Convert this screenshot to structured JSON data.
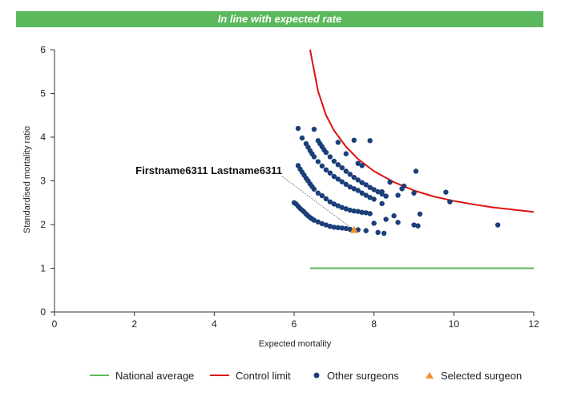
{
  "banner": {
    "text": "In line with expected rate"
  },
  "chart_data": {
    "type": "scatter",
    "xlabel": "Expected mortality",
    "ylabel": "Standardised mortality ratio",
    "xlim": [
      0,
      12
    ],
    "ylim": [
      0,
      6
    ],
    "xticks": [
      "0",
      "2",
      "4",
      "6",
      "8",
      "10",
      "12"
    ],
    "yticks": [
      "0",
      "1",
      "2",
      "3",
      "4",
      "5",
      "6"
    ],
    "grid": false,
    "legend_position": "bottom",
    "colors": {
      "national_average": "#5cb85c",
      "control_limit": "#dd1111",
      "other_surgeons": "#1b3f78",
      "selected_surgeon": "#f0922b"
    },
    "series": [
      {
        "name": "National average",
        "kind": "line",
        "x": [
          6.4,
          12
        ],
        "y": [
          1,
          1
        ]
      },
      {
        "name": "Control limit",
        "kind": "line",
        "x": [
          6.4,
          6.6,
          6.8,
          7.0,
          7.3,
          7.6,
          8.0,
          8.5,
          9.0,
          9.5,
          10.0,
          10.5,
          11.0,
          11.5,
          12.0
        ],
        "y": [
          6.0,
          5.05,
          4.5,
          4.15,
          3.78,
          3.5,
          3.22,
          2.97,
          2.78,
          2.64,
          2.54,
          2.46,
          2.39,
          2.34,
          2.29
        ]
      },
      {
        "name": "Other surgeons",
        "kind": "scatter",
        "x": [
          6.0,
          6.05,
          6.1,
          6.15,
          6.2,
          6.25,
          6.3,
          6.35,
          6.4,
          6.45,
          6.5,
          6.6,
          6.7,
          6.8,
          6.9,
          7.0,
          7.1,
          7.2,
          7.3,
          7.4,
          7.6,
          7.8,
          8.1,
          8.25,
          6.1,
          6.15,
          6.2,
          6.25,
          6.3,
          6.35,
          6.4,
          6.45,
          6.5,
          6.6,
          6.7,
          6.8,
          6.9,
          7.0,
          7.1,
          7.2,
          7.3,
          7.4,
          7.5,
          7.6,
          7.7,
          7.8,
          7.9,
          6.3,
          6.35,
          6.4,
          6.45,
          6.5,
          6.6,
          6.7,
          6.8,
          6.9,
          7.0,
          7.1,
          7.2,
          7.3,
          7.4,
          7.5,
          7.6,
          7.7,
          7.8,
          7.9,
          8.0,
          8.2,
          6.6,
          6.65,
          6.7,
          6.75,
          6.8,
          6.9,
          7.0,
          7.1,
          7.2,
          7.3,
          7.4,
          7.5,
          7.6,
          7.7,
          7.8,
          7.9,
          8.0,
          8.1,
          8.2,
          8.3,
          6.1,
          6.2,
          6.5,
          7.1,
          7.3,
          7.5,
          7.9,
          7.6,
          7.7,
          8.4,
          8.7,
          8.6,
          8.2,
          8.3,
          8.5,
          9.0,
          9.05,
          9.15,
          8.0,
          8.6,
          8.75,
          9.0,
          9.1,
          9.8,
          9.9,
          11.1
        ],
        "y": [
          2.5,
          2.47,
          2.42,
          2.37,
          2.33,
          2.29,
          2.24,
          2.2,
          2.16,
          2.13,
          2.1,
          2.06,
          2.02,
          1.99,
          1.96,
          1.94,
          1.93,
          1.92,
          1.91,
          1.89,
          1.88,
          1.86,
          1.82,
          1.8,
          3.35,
          3.27,
          3.2,
          3.13,
          3.06,
          3.0,
          2.93,
          2.87,
          2.81,
          2.72,
          2.66,
          2.59,
          2.52,
          2.47,
          2.43,
          2.39,
          2.36,
          2.33,
          2.31,
          2.3,
          2.28,
          2.27,
          2.25,
          3.85,
          3.77,
          3.69,
          3.62,
          3.55,
          3.44,
          3.34,
          3.25,
          3.18,
          3.1,
          3.04,
          2.98,
          2.92,
          2.86,
          2.82,
          2.78,
          2.72,
          2.67,
          2.62,
          2.58,
          2.48,
          3.92,
          3.85,
          3.78,
          3.71,
          3.65,
          3.55,
          3.45,
          3.37,
          3.3,
          3.22,
          3.15,
          3.08,
          3.02,
          2.96,
          2.91,
          2.85,
          2.8,
          2.75,
          2.7,
          2.65,
          4.2,
          3.98,
          4.18,
          3.88,
          3.62,
          3.93,
          3.92,
          3.4,
          3.35,
          2.97,
          2.82,
          2.67,
          2.75,
          2.12,
          2.2,
          2.72,
          3.22,
          2.24,
          2.03,
          2.05,
          2.88,
          1.99,
          1.97,
          2.74,
          2.52,
          1.99
        ]
      },
      {
        "name": "Selected surgeon",
        "kind": "scatter",
        "label": "Firstname6311 Lastname6311",
        "x": [
          7.5
        ],
        "y": [
          1.88
        ]
      }
    ]
  }
}
